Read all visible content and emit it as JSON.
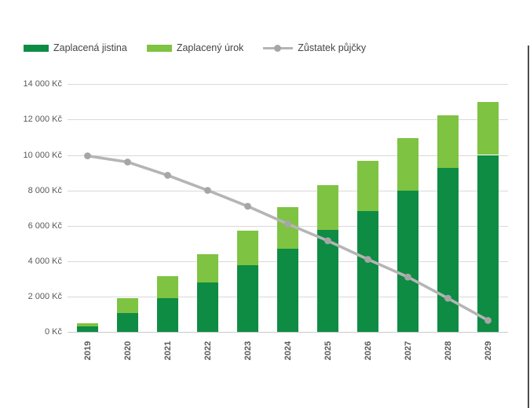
{
  "chart_data": {
    "type": "bar",
    "stacked": true,
    "title": "",
    "xlabel": "",
    "ylabel": "",
    "categories": [
      "2019",
      "2020",
      "2021",
      "2022",
      "2023",
      "2024",
      "2025",
      "2026",
      "2027",
      "2028",
      "2029"
    ],
    "series": [
      {
        "name": "Zaplacená jistina",
        "type": "bar",
        "color": "#0e8c44",
        "values": [
          300,
          1050,
          1900,
          2800,
          3750,
          4700,
          5750,
          6850,
          8000,
          9250,
          10000
        ]
      },
      {
        "name": "Zaplacený úrok",
        "type": "bar",
        "color": "#7ec342",
        "values": [
          190,
          850,
          1250,
          1600,
          1950,
          2350,
          2550,
          2800,
          2950,
          3000,
          3000
        ]
      },
      {
        "name": "Zůstatek půjčky",
        "type": "line",
        "color": "#b5b5b5",
        "marker_color": "#a6a6a6",
        "values": [
          9950,
          9600,
          8850,
          8000,
          7100,
          6100,
          5150,
          4100,
          3100,
          1900,
          650
        ]
      }
    ],
    "ylim": [
      0,
      14000
    ],
    "y_tick_step": 2000,
    "y_tick_labels": [
      "0 Kč",
      "2 000 Kč",
      "4 000 Kč",
      "6 000 Kč",
      "8 000 Kč",
      "10 000 Kč",
      "12 000 Kč",
      "14 000 Kč"
    ],
    "currency": "Kč",
    "grid": true,
    "legend_position": "top",
    "x_label_rotation": 90,
    "colors": {
      "grid": "#d9d9d9",
      "axis_line": "#c9c9c9",
      "axis_text": "#595959",
      "legend_text": "#454545",
      "window_edge": "#4d4d4d",
      "background": "#ffffff"
    }
  }
}
